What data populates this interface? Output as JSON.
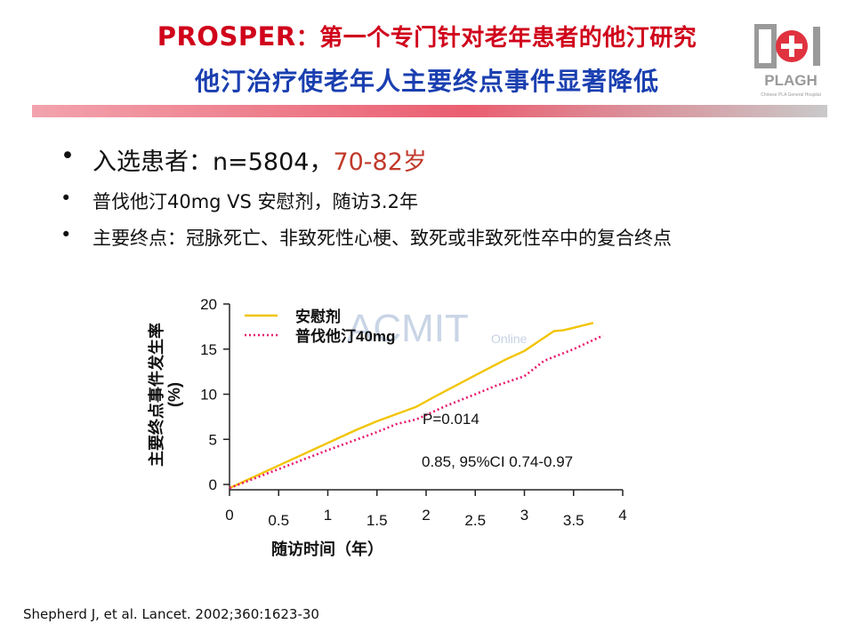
{
  "header": {
    "title_en": "PROSPER",
    "title_sep": "：",
    "title_zh": "第一个专门针对老年患者的他汀研究",
    "subtitle": "他汀治疗使老年人主要终点事件显著降低"
  },
  "logo": {
    "mark": "301",
    "name": "PLAGH",
    "caption": "Chinese PLA General Hospital"
  },
  "bullets": {
    "b1_text": "入选患者：n=5804，",
    "b1_highlight": "70-82岁",
    "b2": "普伐他汀40mg VS 安慰剂，随访3.2年",
    "b3": "主要终点：冠脉死亡、非致死性心梗、致死或非致死性卒中的复合终点"
  },
  "watermark": {
    "text": "ACMIT",
    "sub": "Online"
  },
  "chart_data": {
    "type": "line",
    "ylabel": "主要终点事件发生率\n(%)",
    "xlabel": "随访时间（年）",
    "ylim": [
      0,
      20
    ],
    "xlim": [
      0,
      4
    ],
    "yticks": [
      "0",
      "5",
      "10",
      "15",
      "20"
    ],
    "xticks": [
      "0",
      "0.5",
      "1",
      "1.5",
      "2",
      "2.5",
      "3",
      "3.5",
      "4"
    ],
    "legend_position": "top-left",
    "annotations": [
      "P=0.014",
      "0.85, 95%CI 0.74-0.97"
    ],
    "series": [
      {
        "name": "安慰剂",
        "color": "#f2c400",
        "style": "solid",
        "points": [
          [
            0,
            -0.4
          ],
          [
            0.5,
            2.1
          ],
          [
            1,
            4.6
          ],
          [
            1.3,
            6.1
          ],
          [
            1.5,
            7.0
          ],
          [
            1.9,
            8.6
          ],
          [
            2.1,
            9.8
          ],
          [
            2.5,
            12.1
          ],
          [
            2.8,
            13.8
          ],
          [
            3.0,
            14.8
          ],
          [
            3.3,
            17.0
          ],
          [
            3.4,
            17.1
          ],
          [
            3.7,
            17.9
          ]
        ]
      },
      {
        "name": "普伐他汀40mg",
        "color": "#e8196e",
        "style": "dotted",
        "points": [
          [
            0,
            -0.4
          ],
          [
            0.5,
            1.7
          ],
          [
            1,
            3.8
          ],
          [
            1.5,
            5.8
          ],
          [
            1.7,
            6.7
          ],
          [
            1.9,
            7.2
          ],
          [
            2.2,
            8.7
          ],
          [
            2.5,
            10.0
          ],
          [
            2.7,
            10.9
          ],
          [
            3.0,
            12.0
          ],
          [
            3.2,
            13.7
          ],
          [
            3.5,
            15.0
          ],
          [
            3.8,
            16.5
          ]
        ]
      }
    ]
  },
  "citation": "Shepherd J, et al. Lancet. 2002;360:1623-30"
}
